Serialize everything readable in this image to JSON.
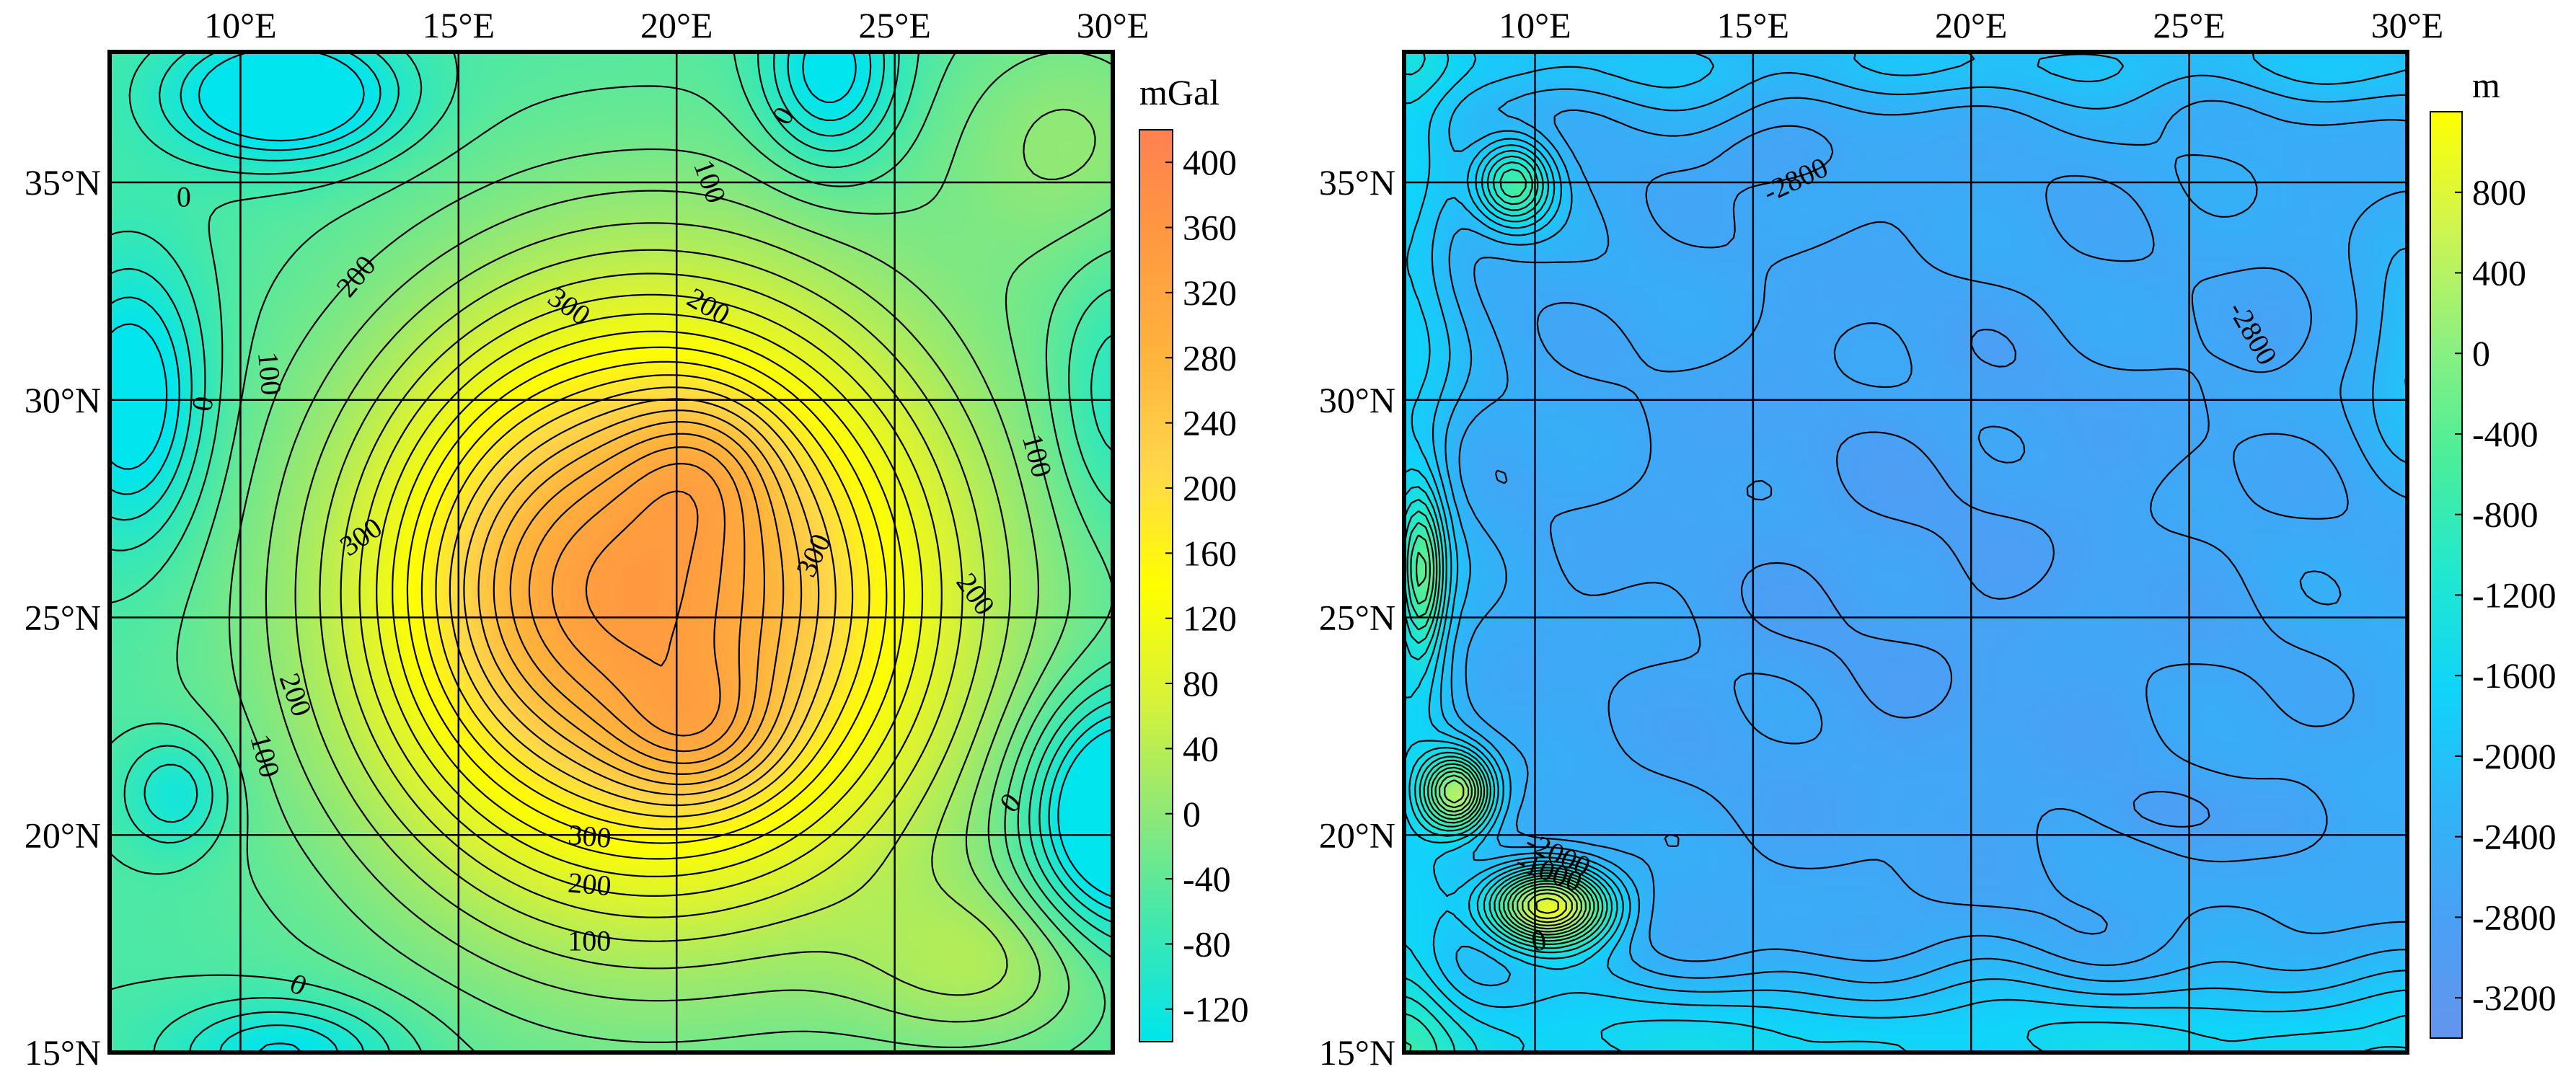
{
  "chart_data": [
    {
      "type": "heatmap",
      "subtype": "contour",
      "unit": "mGal",
      "x_ticks": [
        {
          "value": 10,
          "label": "10°E"
        },
        {
          "value": 15,
          "label": "15°E"
        },
        {
          "value": 20,
          "label": "20°E"
        },
        {
          "value": 25,
          "label": "25°E"
        },
        {
          "value": 30,
          "label": "30°E"
        }
      ],
      "y_ticks": [
        {
          "value": 35,
          "label": "35°N"
        },
        {
          "value": 30,
          "label": "30°N"
        },
        {
          "value": 25,
          "label": "25°N"
        },
        {
          "value": 20,
          "label": "20°N"
        },
        {
          "value": 15,
          "label": "15°N"
        }
      ],
      "xlim": [
        7,
        30
      ],
      "ylim": [
        15,
        38
      ],
      "grid": true,
      "colorbar": {
        "ticks": [
          "400",
          "360",
          "320",
          "280",
          "240",
          "200",
          "160",
          "120",
          "80",
          "40",
          "0",
          "-40",
          "-80",
          "-120"
        ],
        "range": [
          -140,
          420
        ],
        "colors": [
          "#00e5ee",
          "#3de8b0",
          "#8fe878",
          "#d7f238",
          "#ffff00",
          "#ffd84a",
          "#ffb43c",
          "#ff9a40",
          "#ff8050"
        ]
      },
      "contour_labels": [
        {
          "text": "0",
          "lon": 8.7,
          "lat": 34.6,
          "rot": 0
        },
        {
          "text": "0",
          "lon": 22.5,
          "lat": 36.5,
          "rot": -60
        },
        {
          "text": "100",
          "lon": 20.7,
          "lat": 35.0,
          "rot": 70
        },
        {
          "text": "200",
          "lon": 12.7,
          "lat": 32.8,
          "rot": -50
        },
        {
          "text": "300",
          "lon": 17.5,
          "lat": 32.1,
          "rot": 35
        },
        {
          "text": "200",
          "lon": 20.7,
          "lat": 32.1,
          "rot": 30
        },
        {
          "text": "100",
          "lon": 10.6,
          "lat": 30.6,
          "rot": 85
        },
        {
          "text": "0",
          "lon": 9.2,
          "lat": 29.9,
          "rot": -80
        },
        {
          "text": "100",
          "lon": 28.2,
          "lat": 28.7,
          "rot": 75
        },
        {
          "text": "300",
          "lon": 12.8,
          "lat": 26.8,
          "rot": -35
        },
        {
          "text": "300",
          "lon": 23.2,
          "lat": 26.4,
          "rot": -65
        },
        {
          "text": "200",
          "lon": 26.8,
          "lat": 25.5,
          "rot": 55
        },
        {
          "text": "200",
          "lon": 11.2,
          "lat": 23.2,
          "rot": 70
        },
        {
          "text": "100",
          "lon": 10.5,
          "lat": 21.8,
          "rot": 75
        },
        {
          "text": "0",
          "lon": 27.7,
          "lat": 20.7,
          "rot": -50
        },
        {
          "text": "300",
          "lon": 18.0,
          "lat": 19.9,
          "rot": 5
        },
        {
          "text": "200",
          "lon": 18.0,
          "lat": 18.8,
          "rot": 5
        },
        {
          "text": "100",
          "lon": 18.0,
          "lat": 17.5,
          "rot": 0
        },
        {
          "text": "0",
          "lon": 11.3,
          "lat": 16.5,
          "rot": 25
        }
      ]
    },
    {
      "type": "heatmap",
      "subtype": "contour",
      "unit": "m",
      "x_ticks": [
        {
          "value": 10,
          "label": "10°E"
        },
        {
          "value": 15,
          "label": "15°E"
        },
        {
          "value": 20,
          "label": "20°E"
        },
        {
          "value": 25,
          "label": "25°E"
        },
        {
          "value": 30,
          "label": "30°E"
        }
      ],
      "y_ticks": [
        {
          "value": 35,
          "label": "35°N"
        },
        {
          "value": 30,
          "label": "30°N"
        },
        {
          "value": 25,
          "label": "25°N"
        },
        {
          "value": 20,
          "label": "20°N"
        },
        {
          "value": 15,
          "label": "15°N"
        }
      ],
      "xlim": [
        7,
        30
      ],
      "ylim": [
        15,
        38
      ],
      "grid": true,
      "colorbar": {
        "ticks": [
          "800",
          "400",
          "0",
          "-400",
          "-800",
          "-1200",
          "-1600",
          "-2000",
          "-2400",
          "-2800",
          "-3200"
        ],
        "range": [
          -3400,
          1200
        ],
        "colors": [
          "#6495ed",
          "#4aa0f5",
          "#30b4f8",
          "#10d4fa",
          "#20e8d0",
          "#4aee9a",
          "#8ef080",
          "#d0f450",
          "#ffff00"
        ]
      },
      "contour_labels": [
        {
          "text": "-2800",
          "lon": 16.0,
          "lat": 35.0,
          "rot": -25
        },
        {
          "text": "-2800",
          "lon": 26.4,
          "lat": 31.5,
          "rot": 60
        },
        {
          "text": "-2000",
          "lon": 10.5,
          "lat": 19.5,
          "rot": 25
        },
        {
          "text": "-1000",
          "lon": 10.3,
          "lat": 19.1,
          "rot": 20
        },
        {
          "text": "0",
          "lon": 10.1,
          "lat": 17.5,
          "rot": -10
        }
      ]
    }
  ]
}
